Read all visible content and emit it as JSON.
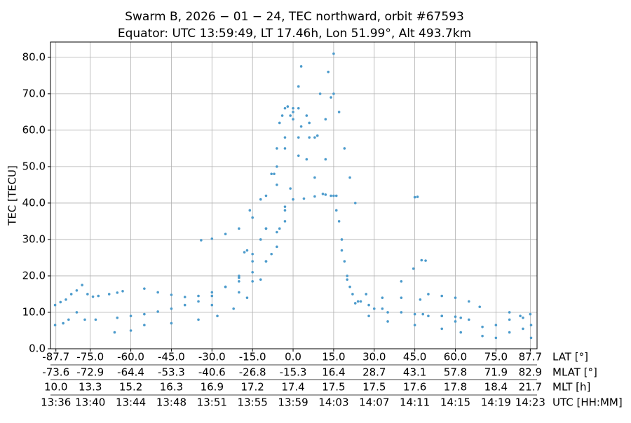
{
  "chart_data": {
    "type": "scatter",
    "title": [
      "Swarm B,  2026 − 01 − 24,  TEC northward,  orbit #67593",
      "Equator:  UTC 13:59:49,  LT 17.46h,  Lon 51.99°,  Alt 493.7km"
    ],
    "y_label": "TEC [TECU]",
    "x_label": "LAT [°]",
    "color": "#4c9bcc",
    "grid": true,
    "xlim": [
      -89.7,
      90.2
    ],
    "ylim": [
      0,
      84.2
    ],
    "xticks": [
      -87.7,
      {
        "value": -75,
        "label": "-75.0"
      },
      {
        "value": -60,
        "label": "-60.0"
      },
      {
        "value": -45,
        "label": "-45.0"
      },
      {
        "value": -30,
        "label": "-30.0"
      },
      {
        "value": -15,
        "label": "-15.0"
      },
      {
        "value": 0,
        "label": "0.0"
      },
      {
        "value": 15,
        "label": "15.0"
      },
      {
        "value": 30,
        "label": "30.0"
      },
      {
        "value": 45,
        "label": "45.0"
      },
      {
        "value": 60,
        "label": "60.0"
      },
      {
        "value": 75,
        "label": "75.0"
      },
      87.7
    ],
    "yticks": [
      {
        "value": 0,
        "label": "0.0"
      },
      {
        "value": 10,
        "label": "10.0"
      },
      {
        "value": 20,
        "label": "20.0"
      },
      {
        "value": 30,
        "label": "30.0"
      },
      {
        "value": 40,
        "label": "40.0"
      },
      {
        "value": 50,
        "label": "50.0"
      },
      {
        "value": 60,
        "label": "60.0"
      },
      {
        "value": 70,
        "label": "70.0"
      },
      {
        "value": 80,
        "label": "80.0"
      }
    ],
    "secondary_axes": [
      {
        "name": "MLAT [°]",
        "labels": [
          "-73.6",
          "-72.9",
          "-64.4",
          "-53.3",
          "-40.6",
          "-26.8",
          "-15.3",
          "16.4",
          "28.7",
          "43.1",
          "57.8",
          "71.9",
          "82.9"
        ]
      },
      {
        "name": "MLT [h]",
        "labels": [
          "10.0",
          "13.3",
          "15.2",
          "16.3",
          "16.9",
          "17.2",
          "17.4",
          "17.5",
          "17.5",
          "17.6",
          "17.8",
          "18.4",
          "21.7"
        ]
      },
      {
        "name": "UTC [HH:MM]",
        "labels": [
          "13:36",
          "13:40",
          "13:44",
          "13:48",
          "13:51",
          "13:55",
          "13:59",
          "14:03",
          "14:07",
          "14:11",
          "14:15",
          "14:19",
          "14:23"
        ]
      }
    ],
    "series": [
      {
        "x": [
          -88,
          -86,
          -84,
          -82,
          -80,
          -78,
          -76,
          -74,
          -72,
          -68,
          -65,
          -63
        ],
        "values": [
          12,
          12.8,
          13.5,
          15,
          16,
          17.5,
          15,
          14.3,
          14.5,
          15,
          15.4,
          15.8
        ]
      },
      {
        "x": [
          -55,
          -50,
          -45,
          -40,
          -35,
          -30,
          -25,
          -20,
          -15,
          -10,
          -7,
          -5,
          -3,
          -1,
          2,
          5,
          8,
          11,
          14,
          16,
          18,
          20,
          22,
          25,
          30,
          35,
          45,
          55,
          62
        ],
        "values": [
          16.5,
          15.5,
          14.8,
          14.2,
          14.5,
          15.5,
          17,
          19.5,
          24,
          33,
          48,
          62,
          66,
          64,
          58,
          52,
          47,
          42.5,
          42,
          38,
          27,
          19,
          15,
          13,
          11,
          10,
          9.5,
          9,
          8.5
        ]
      },
      {
        "x": [
          -16,
          -12,
          -8,
          -6,
          -4,
          -2,
          0,
          3,
          6,
          9,
          12,
          14,
          15,
          17,
          19,
          21,
          23
        ],
        "values": [
          38,
          41,
          48,
          55,
          64,
          66.5,
          65,
          61,
          58,
          58.5,
          63,
          69,
          70,
          65,
          55,
          47,
          40
        ]
      },
      {
        "x": [
          -34,
          -30,
          -25,
          -20,
          -15,
          -10,
          -6,
          -3,
          0,
          2,
          3
        ],
        "values": [
          29.8,
          30.2,
          31.5,
          33,
          36,
          42,
          50,
          58,
          66,
          72,
          77.5
        ]
      },
      {
        "x": [
          -20,
          -15,
          -10,
          -6,
          -3,
          -1,
          2,
          6,
          10,
          13,
          15
        ],
        "values": [
          18.5,
          21,
          24,
          28,
          35,
          44,
          53,
          62,
          70,
          76,
          81
        ]
      },
      {
        "x": [
          -30,
          -20,
          -15,
          -10,
          -6,
          -3,
          0,
          4,
          8,
          12,
          15,
          17,
          19,
          21,
          24,
          28,
          33,
          40,
          48,
          55,
          60,
          65
        ],
        "values": [
          12,
          15.5,
          18.5,
          24,
          32,
          39,
          41,
          41.2,
          41.8,
          42.3,
          42,
          35,
          24,
          17,
          13,
          12,
          11,
          10,
          9.5,
          9,
          8.8,
          8
        ]
      },
      {
        "x": [
          -88,
          -85,
          -83,
          -80,
          -77,
          -73,
          -65,
          -60,
          -55,
          -50,
          -45,
          -40,
          -35,
          -30,
          -25,
          -20,
          -15,
          -12,
          -10,
          -6,
          -3,
          0,
          2,
          5,
          8,
          12,
          16,
          18,
          20,
          23,
          28,
          35,
          45,
          55,
          62,
          70,
          75,
          80,
          85,
          88
        ],
        "values": [
          6.5,
          7,
          8,
          10,
          8,
          8,
          8.5,
          9,
          9.5,
          10.2,
          11,
          12,
          13,
          14.5,
          17,
          20,
          26,
          30,
          33,
          45,
          55,
          63,
          66,
          64,
          58,
          52,
          42,
          30,
          20,
          12.5,
          9,
          7.5,
          6.5,
          5.5,
          4.5,
          3.5,
          3,
          4.5,
          5.5,
          3
        ]
      },
      {
        "x": [
          -66,
          -60,
          -55,
          -45,
          -35,
          -28,
          -22,
          -17,
          -12,
          -8,
          -5,
          -3
        ],
        "values": [
          4.5,
          5,
          6.5,
          7,
          8,
          9,
          11,
          14,
          19,
          26,
          33,
          38
        ]
      },
      {
        "x": [
          27,
          33,
          40,
          47,
          50,
          55,
          60,
          65,
          69
        ],
        "values": [
          15,
          14,
          14,
          13.5,
          15,
          14.5,
          14,
          13,
          11.5
        ]
      },
      {
        "x": [
          45,
          46,
          47.5,
          49,
          44.5,
          40,
          -18,
          -17
        ],
        "values": [
          41.6,
          41.7,
          24.3,
          24.2,
          22,
          18.5,
          26.5,
          27
        ]
      },
      {
        "x": [
          50,
          60,
          70,
          75,
          80,
          85,
          88,
          80,
          84,
          87.7
        ],
        "values": [
          9,
          7.5,
          6,
          6.5,
          8,
          8.5,
          6.5,
          10,
          9,
          9.5
        ]
      }
    ]
  }
}
